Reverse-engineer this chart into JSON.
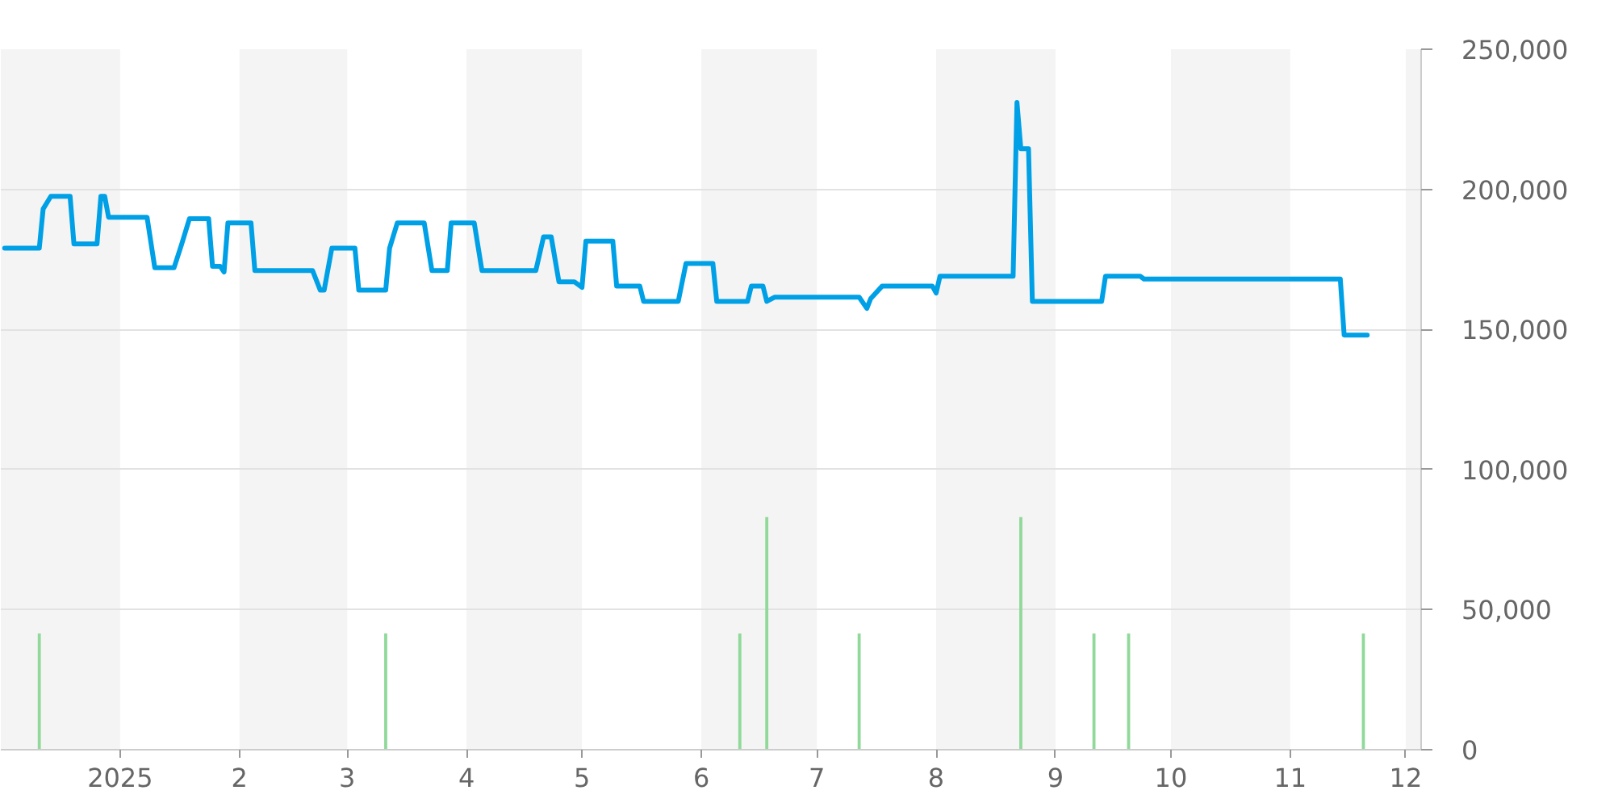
{
  "chart_data": {
    "type": "line",
    "xlim": [
      "2024-12-01",
      "2025-12-05"
    ],
    "ylim": [
      0,
      250000
    ],
    "xticks": [
      {
        "value": "2025-01-01",
        "label": "2025"
      },
      {
        "value": "2025-02-01",
        "label": "2"
      },
      {
        "value": "2025-03-01",
        "label": "3"
      },
      {
        "value": "2025-04-01",
        "label": "4"
      },
      {
        "value": "2025-05-01",
        "label": "5"
      },
      {
        "value": "2025-06-01",
        "label": "6"
      },
      {
        "value": "2025-07-01",
        "label": "7"
      },
      {
        "value": "2025-08-01",
        "label": "8"
      },
      {
        "value": "2025-09-01",
        "label": "9"
      },
      {
        "value": "2025-10-01",
        "label": "10"
      },
      {
        "value": "2025-11-01",
        "label": "11"
      },
      {
        "value": "2025-12-01",
        "label": "12"
      }
    ],
    "yticks": [
      {
        "value": 0,
        "label": "0"
      },
      {
        "value": 50000,
        "label": "50,000"
      },
      {
        "value": 100000,
        "label": "100,000"
      },
      {
        "value": 150000,
        "label": "150,000"
      },
      {
        "value": 200000,
        "label": "200,000"
      },
      {
        "value": 250000,
        "label": "250,000"
      }
    ],
    "grid": "y",
    "bands": [
      {
        "axis": "x",
        "from": "2024-12-01",
        "to": "2025-01-01",
        "color": "#f4f4f4"
      },
      {
        "axis": "x",
        "from": "2025-02-01",
        "to": "2025-03-01",
        "color": "#f4f4f4"
      },
      {
        "axis": "x",
        "from": "2025-04-01",
        "to": "2025-05-01",
        "color": "#f4f4f4"
      },
      {
        "axis": "x",
        "from": "2025-06-01",
        "to": "2025-07-01",
        "color": "#f4f4f4"
      },
      {
        "axis": "x",
        "from": "2025-08-01",
        "to": "2025-09-01",
        "color": "#f4f4f4"
      },
      {
        "axis": "x",
        "from": "2025-10-01",
        "to": "2025-11-01",
        "color": "#f4f4f4"
      },
      {
        "axis": "x",
        "from": "2025-12-01",
        "to": "2025-12-05",
        "color": "#f4f4f4"
      }
    ],
    "series": [
      {
        "type": "bar",
        "color": "#90d99a",
        "x": [
          "2024-12-11",
          "2025-03-11",
          "2025-06-11",
          "2025-06-18",
          "2025-07-12",
          "2025-08-23",
          "2025-09-11",
          "2025-09-20",
          "2025-11-20"
        ],
        "values": [
          41500,
          41500,
          41500,
          83000,
          41500,
          83000,
          41500,
          41500,
          41500
        ]
      },
      {
        "color": "#00a0e6",
        "x": [
          "2024-12-02",
          "2024-12-11",
          "2024-12-12",
          "2024-12-14",
          "2024-12-19",
          "2024-12-20",
          "2024-12-26",
          "2024-12-27",
          "2024-12-28",
          "2024-12-29",
          "2025-01-08",
          "2025-01-10",
          "2025-01-15",
          "2025-01-17",
          "2025-01-19",
          "2025-01-24",
          "2025-01-25",
          "2025-01-27",
          "2025-01-28",
          "2025-01-29",
          "2025-02-04",
          "2025-02-05",
          "2025-02-20",
          "2025-02-22",
          "2025-02-23",
          "2025-02-25",
          "2025-03-03",
          "2025-03-04",
          "2025-03-11",
          "2025-03-12",
          "2025-03-14",
          "2025-03-21",
          "2025-03-23",
          "2025-03-27",
          "2025-03-28",
          "2025-04-03",
          "2025-04-05",
          "2025-04-19",
          "2025-04-21",
          "2025-04-23",
          "2025-04-25",
          "2025-04-29",
          "2025-05-01",
          "2025-05-02",
          "2025-05-09",
          "2025-05-10",
          "2025-05-16",
          "2025-05-17",
          "2025-05-26",
          "2025-05-28",
          "2025-06-04",
          "2025-06-05",
          "2025-06-13",
          "2025-06-14",
          "2025-06-17",
          "2025-06-18",
          "2025-06-20",
          "2025-07-12",
          "2025-07-14",
          "2025-07-15",
          "2025-07-18",
          "2025-07-31",
          "2025-08-01",
          "2025-08-02",
          "2025-08-21",
          "2025-08-22",
          "2025-08-23",
          "2025-08-25",
          "2025-08-26",
          "2025-09-13",
          "2025-09-14",
          "2025-09-23",
          "2025-09-24",
          "2025-11-14",
          "2025-11-15",
          "2025-11-21"
        ],
        "values": [
          179000,
          179000,
          193000,
          197500,
          197500,
          180500,
          180500,
          197500,
          197500,
          190000,
          190000,
          172000,
          172000,
          180500,
          189500,
          189500,
          172500,
          172500,
          170500,
          188000,
          188000,
          171000,
          171000,
          164000,
          164000,
          179000,
          179000,
          164000,
          164000,
          179000,
          188000,
          188000,
          171000,
          171000,
          188000,
          188000,
          171000,
          171000,
          183000,
          183000,
          167000,
          167000,
          165000,
          181500,
          181500,
          165500,
          165500,
          160000,
          160000,
          173500,
          173500,
          160000,
          160000,
          165500,
          165500,
          160000,
          161500,
          161500,
          157500,
          161000,
          165500,
          165500,
          163000,
          169000,
          169000,
          231000,
          214500,
          214500,
          160000,
          160000,
          169000,
          169000,
          168000,
          168000,
          148000,
          148000
        ]
      }
    ]
  }
}
